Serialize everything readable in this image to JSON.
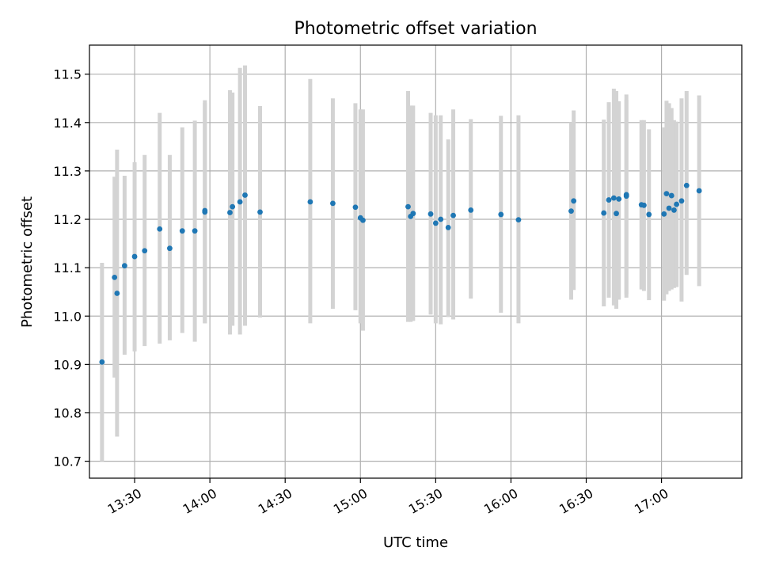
{
  "chart_data": {
    "type": "scatter",
    "title": "Photometric offset variation",
    "xlabel": "UTC time",
    "ylabel": "Photometric offset",
    "grid": true,
    "xlim": [
      "13:12",
      "17:32"
    ],
    "ylim": [
      10.665,
      11.56
    ],
    "x_ticks": [
      "13:30",
      "14:00",
      "14:30",
      "15:00",
      "15:30",
      "16:00",
      "16:30",
      "17:00"
    ],
    "y_ticks": [
      10.7,
      10.8,
      10.9,
      11.0,
      11.1,
      11.2,
      11.3,
      11.4,
      11.5
    ],
    "series": [
      {
        "x": [
          "13:17",
          "13:22",
          "13:23",
          "13:26",
          "13:30",
          "13:34",
          "13:40",
          "13:44",
          "13:49",
          "13:54",
          "13:58",
          "13:58",
          "14:08",
          "14:09",
          "14:12",
          "14:14",
          "14:20",
          "14:40",
          "14:49",
          "14:58",
          "15:00",
          "15:01",
          "15:19",
          "15:20",
          "15:21",
          "15:28",
          "15:30",
          "15:32",
          "15:35",
          "15:37",
          "15:44",
          "15:56",
          "16:03",
          "16:24",
          "16:25",
          "16:37",
          "16:39",
          "16:41",
          "16:42",
          "16:43",
          "16:46",
          "16:46",
          "16:52",
          "16:53",
          "16:55",
          "17:01",
          "17:02",
          "17:03",
          "17:04",
          "17:05",
          "17:06",
          "17:08",
          "17:10",
          "17:15"
        ],
        "y": [
          10.905,
          11.08,
          11.047,
          11.104,
          11.123,
          11.135,
          11.18,
          11.14,
          11.176,
          11.176,
          11.215,
          11.218,
          11.214,
          11.226,
          11.236,
          11.25,
          11.215,
          11.236,
          11.233,
          11.225,
          11.203,
          11.198,
          11.226,
          11.206,
          11.212,
          11.211,
          11.192,
          11.2,
          11.183,
          11.208,
          11.219,
          11.21,
          11.199,
          11.217,
          11.238,
          11.213,
          11.24,
          11.244,
          11.212,
          11.242,
          11.248,
          11.251,
          11.23,
          11.229,
          11.21,
          11.211,
          11.253,
          11.223,
          11.249,
          11.219,
          11.231,
          11.238,
          11.27,
          11.259
        ],
        "yerr_low": [
          10.7,
          10.873,
          10.751,
          10.92,
          10.927,
          10.938,
          10.943,
          10.95,
          10.965,
          10.947,
          10.985,
          10.985,
          10.962,
          10.98,
          10.962,
          10.98,
          10.997,
          10.985,
          11.015,
          11.012,
          10.985,
          10.97,
          10.988,
          10.988,
          10.99,
          11.003,
          10.985,
          10.983,
          10.998,
          10.993,
          11.036,
          11.007,
          10.985,
          11.034,
          11.054,
          11.02,
          11.038,
          11.022,
          11.015,
          11.034,
          11.038,
          11.045,
          11.055,
          11.052,
          11.033,
          11.032,
          11.045,
          11.052,
          11.055,
          11.058,
          11.06,
          11.03,
          11.085,
          11.062
        ],
        "yerr_high": [
          11.11,
          11.288,
          11.344,
          11.29,
          11.318,
          11.333,
          11.42,
          11.333,
          11.39,
          11.404,
          11.446,
          11.44,
          11.467,
          11.462,
          11.513,
          11.518,
          11.434,
          11.49,
          11.45,
          11.44,
          11.427,
          11.427,
          11.465,
          11.435,
          11.435,
          11.42,
          11.415,
          11.415,
          11.365,
          11.427,
          11.407,
          11.414,
          11.415,
          11.4,
          11.425,
          11.406,
          11.442,
          11.47,
          11.465,
          11.444,
          11.458,
          11.447,
          11.405,
          11.405,
          11.386,
          11.39,
          11.445,
          11.44,
          11.43,
          11.405,
          11.402,
          11.45,
          11.465,
          11.456
        ]
      }
    ]
  }
}
